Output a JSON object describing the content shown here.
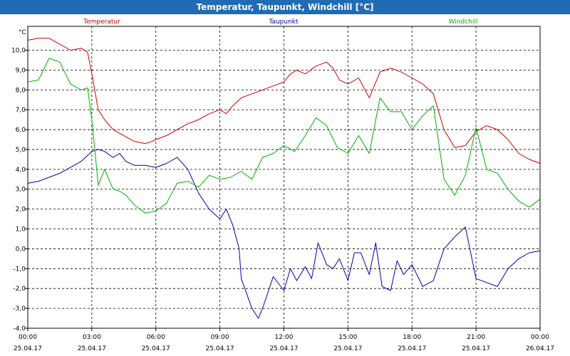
{
  "window_title": "Temperatur, Taupunkt, Windchill [°C]",
  "chart_data": {
    "type": "line",
    "title": "Temperatur, Taupunkt, Windchill [°C]",
    "ylabel": "°C",
    "ylim": [
      -4.0,
      11.2
    ],
    "y_ticks": [
      "-4,0",
      "-3,0",
      "-2,0",
      "-1,0",
      "0,0",
      "1,0",
      "2,0",
      "3,0",
      "4,0",
      "5,0",
      "6,0",
      "7,0",
      "8,0",
      "9,0",
      "10,0"
    ],
    "x_range_hours": [
      0,
      24
    ],
    "x_ticks": [
      {
        "time": "00:00",
        "date": "25.04.17"
      },
      {
        "time": "03:00",
        "date": "25.04.17"
      },
      {
        "time": "06:00",
        "date": "25.04.17"
      },
      {
        "time": "09:00",
        "date": "25.04.17"
      },
      {
        "time": "12:00",
        "date": "25.04.17"
      },
      {
        "time": "15:00",
        "date": "25.04.17"
      },
      {
        "time": "18:00",
        "date": "25.04.17"
      },
      {
        "time": "21:00",
        "date": "25.04.17"
      },
      {
        "time": "00:00",
        "date": "26.04.17"
      }
    ],
    "grid": true,
    "legend": "top",
    "series": [
      {
        "name": "Temperatur",
        "color": "#d00000",
        "x": [
          0,
          0.5,
          1,
          1.5,
          2,
          2.5,
          2.8,
          3,
          3.3,
          3.6,
          4,
          4.5,
          5,
          5.5,
          5.8,
          6,
          6.5,
          7,
          7.5,
          8,
          8.5,
          9,
          9.3,
          9.6,
          10,
          10.5,
          11,
          11.5,
          12,
          12.3,
          12.6,
          13,
          13.5,
          14,
          14.3,
          14.6,
          15,
          15.5,
          16,
          16.5,
          17,
          17.5,
          18,
          18.5,
          19,
          19.5,
          20,
          20.5,
          21,
          21.5,
          22,
          22.5,
          23,
          23.5,
          24
        ],
        "values": [
          10.5,
          10.6,
          10.6,
          10.3,
          10.0,
          10.1,
          9.9,
          8.8,
          7.0,
          6.5,
          6.0,
          5.7,
          5.4,
          5.3,
          5.4,
          5.5,
          5.7,
          6.0,
          6.3,
          6.5,
          6.8,
          7.0,
          6.8,
          7.2,
          7.6,
          7.8,
          8.0,
          8.2,
          8.4,
          8.8,
          9.0,
          8.8,
          9.2,
          9.4,
          9.1,
          8.5,
          8.3,
          8.6,
          7.6,
          8.9,
          9.1,
          8.9,
          8.6,
          8.3,
          7.8,
          6.0,
          5.1,
          5.2,
          5.9,
          6.2,
          6.0,
          5.5,
          4.8,
          4.5,
          4.3
        ]
      },
      {
        "name": "Taupunkt",
        "color": "#0000b0",
        "x": [
          0,
          0.5,
          1,
          1.5,
          2,
          2.5,
          2.8,
          3,
          3.3,
          3.6,
          4,
          4.3,
          4.6,
          5,
          5.5,
          6,
          6.5,
          7,
          7.5,
          8,
          8.5,
          9,
          9.3,
          9.6,
          9.9,
          10,
          10.5,
          10.8,
          11,
          11.5,
          12,
          12.3,
          12.6,
          13,
          13.3,
          13.6,
          14,
          14.3,
          14.6,
          15,
          15.3,
          15.6,
          16,
          16.3,
          16.6,
          17,
          17.3,
          17.6,
          18,
          18.5,
          19,
          19.5,
          20,
          20.5,
          21,
          21.5,
          22,
          22.5,
          23,
          23.5,
          24
        ],
        "values": [
          3.3,
          3.4,
          3.6,
          3.8,
          4.1,
          4.4,
          4.7,
          4.9,
          5.0,
          4.9,
          4.6,
          4.8,
          4.4,
          4.2,
          4.2,
          4.1,
          4.3,
          4.6,
          4.0,
          2.8,
          2.0,
          1.5,
          2.0,
          1.2,
          0.0,
          -1.5,
          -3.0,
          -3.5,
          -3.0,
          -1.4,
          -2.1,
          -1.0,
          -1.6,
          -0.9,
          -1.5,
          0.3,
          -0.8,
          -1.0,
          -0.5,
          -1.6,
          -0.2,
          -0.2,
          -1.3,
          0.3,
          -1.9,
          -2.1,
          -0.6,
          -1.3,
          -0.8,
          -1.9,
          -1.6,
          0.0,
          0.6,
          1.1,
          -1.5,
          -1.7,
          -1.9,
          -1.0,
          -0.5,
          -0.2,
          -0.1
        ]
      },
      {
        "name": "Windchill",
        "color": "#00b000",
        "x": [
          0,
          0.5,
          1,
          1.5,
          2,
          2.5,
          2.8,
          3,
          3.3,
          3.6,
          4,
          4.3,
          4.6,
          5,
          5.5,
          6,
          6.5,
          7,
          7.5,
          8,
          8.5,
          9,
          9.5,
          10,
          10.5,
          11,
          11.5,
          12,
          12.5,
          13,
          13.5,
          14,
          14.5,
          15,
          15.5,
          16,
          16.5,
          17,
          17.5,
          18,
          18.5,
          19,
          19.5,
          20,
          20.5,
          21,
          21.5,
          22,
          22.5,
          23,
          23.5,
          24
        ],
        "values": [
          8.4,
          8.5,
          9.6,
          9.4,
          8.3,
          8.0,
          8.1,
          6.5,
          3.2,
          4.0,
          3.0,
          2.9,
          2.7,
          2.2,
          1.8,
          1.9,
          2.3,
          3.3,
          3.4,
          3.1,
          3.7,
          3.5,
          3.6,
          3.9,
          3.5,
          4.6,
          4.8,
          5.2,
          4.9,
          5.7,
          6.6,
          6.2,
          5.1,
          4.8,
          5.7,
          4.8,
          7.6,
          6.9,
          6.9,
          6.0,
          6.7,
          7.2,
          3.5,
          2.7,
          3.7,
          6.1,
          4.0,
          3.8,
          3.0,
          2.4,
          2.1,
          2.5
        ]
      }
    ]
  }
}
